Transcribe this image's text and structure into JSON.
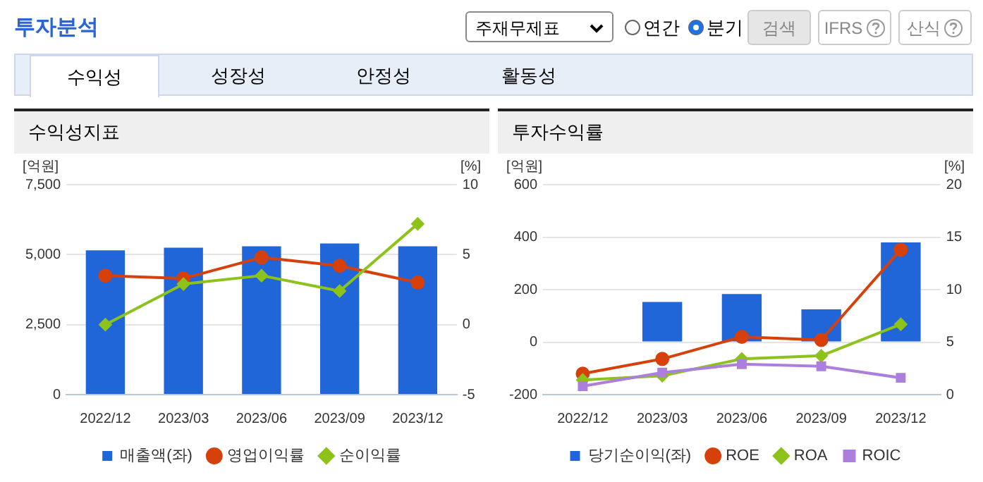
{
  "chart_data": [
    {
      "type": "bar",
      "title": "수익성지표",
      "ylabel": "[억원]",
      "y2label": "[%]",
      "categories": [
        "2022/12",
        "2023/03",
        "2023/06",
        "2023/09",
        "2023/12"
      ],
      "series": [
        {
          "name": "매출액(좌)",
          "color": "#2166d9",
          "values": [
            5150,
            5250,
            5300,
            5400,
            5300
          ]
        },
        {
          "name": "영업이익률",
          "type": "line",
          "axis": "y2",
          "marker": "circle",
          "color": "#d6400b",
          "values": [
            3.5,
            3.3,
            4.8,
            4.2,
            3.0
          ]
        },
        {
          "name": "순이익률",
          "type": "line",
          "axis": "y2",
          "marker": "diamond",
          "color": "#8cc21a",
          "values": [
            0.0,
            2.9,
            3.5,
            2.4,
            7.2
          ]
        }
      ],
      "ylim": [
        0,
        7500
      ],
      "yticks": [
        0,
        {
          "value": 2500,
          "label": "2,500"
        },
        {
          "value": 5000,
          "label": "5,000"
        },
        {
          "value": 7500,
          "label": "7,500"
        }
      ],
      "y2lim": [
        -5,
        10
      ],
      "y2ticks": [
        -5,
        0,
        5,
        10
      ],
      "grid": "y",
      "legend": "bottom",
      "annotations": [
        "투자분석",
        "주재무제표",
        "연간",
        "분기",
        "검색",
        "IFRS",
        "산식",
        "수익성",
        "성장성",
        "안정성",
        "활동성"
      ]
    },
    {
      "type": "bar",
      "title": "투자수익률",
      "ylabel": "[억원]",
      "y2label": "[%]",
      "categories": [
        "2022/12",
        "2023/03",
        "2023/06",
        "2023/09",
        "2023/12"
      ],
      "series": [
        {
          "name": "당기순이익(좌)",
          "color": "#2166d9",
          "values": [
            null,
            153,
            183,
            125,
            380
          ]
        },
        {
          "name": "ROE",
          "type": "line",
          "axis": "y2",
          "marker": "circle",
          "color": "#d6400b",
          "values": [
            2.0,
            3.4,
            5.5,
            5.2,
            13.8
          ]
        },
        {
          "name": "ROA",
          "type": "line",
          "axis": "y2",
          "marker": "diamond",
          "color": "#8cc21a",
          "values": [
            1.4,
            1.8,
            3.4,
            3.7,
            6.7
          ]
        },
        {
          "name": "ROIC",
          "type": "line",
          "axis": "y2",
          "marker": "square",
          "color": "#ad7fdd",
          "values": [
            0.8,
            2.1,
            2.9,
            2.7,
            1.6
          ]
        }
      ],
      "ylim": [
        -200,
        600
      ],
      "yticks": [
        -200,
        0,
        200,
        400,
        600
      ],
      "y2lim": [
        0,
        20
      ],
      "y2ticks": [
        0,
        5,
        10,
        15,
        20
      ],
      "grid": "y",
      "legend": "bottom"
    }
  ]
}
